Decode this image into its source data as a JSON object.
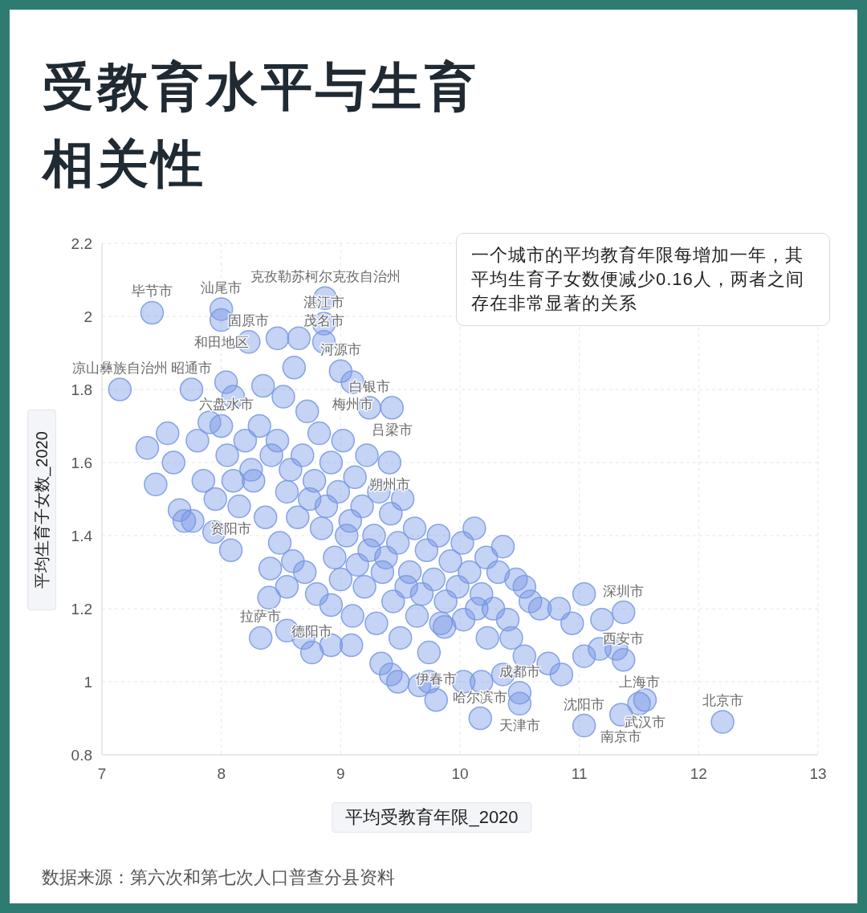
{
  "chart_data": {
    "type": "scatter",
    "title": "受教育水平与生育相关性",
    "xlabel": "平均受教育年限_2020",
    "ylabel": "平均生育子女数_2020",
    "series": [
      {
        "color": "#7596e4",
        "x": [
          7.42,
          8.0,
          8.0,
          8.23,
          8.87,
          8.86,
          8.86,
          7.15,
          7.75,
          8.04,
          9.0,
          9.1,
          9.24,
          9.43,
          9.41,
          8.08,
          8.33,
          8.76,
          9.8,
          10.17,
          10.5,
          10.5,
          11.04,
          11.35,
          11.5,
          11.55,
          12.2,
          11.37,
          11.37,
          8.35,
          8.47,
          8.65,
          7.38,
          7.9,
          7.45,
          7.76,
          7.69,
          7.65,
          7.94,
          8.4,
          8.55,
          8.69,
          8.92,
          8.92,
          8.41,
          8.55,
          9.09,
          9.34,
          9.42,
          9.48,
          9.66,
          9.74,
          10.03,
          10.18,
          10.36,
          10.54,
          10.74,
          10.85,
          10.36,
          10.54,
          10.59,
          10.67,
          10.83,
          10.94,
          11.04,
          11.17,
          10.4,
          10.23,
          10.03,
          9.87,
          11.31,
          11.19,
          11.04,
          7.6,
          7.8,
          8.0,
          8.05,
          8.1,
          8.15,
          7.55,
          8.2,
          8.25,
          7.85,
          7.95,
          8.1,
          8.32,
          8.27,
          8.42,
          8.37,
          8.52,
          8.47,
          8.55,
          8.49,
          8.61,
          8.58,
          8.64,
          8.6,
          8.72,
          8.68,
          8.74,
          8.7,
          8.82,
          8.78,
          8.84,
          8.8,
          8.92,
          8.88,
          8.95,
          9.02,
          8.98,
          9.05,
          9.0,
          9.12,
          9.08,
          9.14,
          9.1,
          9.22,
          9.18,
          9.24,
          9.2,
          9.32,
          9.28,
          9.35,
          9.3,
          9.42,
          9.38,
          9.44,
          9.52,
          9.48,
          9.55,
          9.5,
          9.62,
          9.58,
          9.64,
          9.72,
          9.68,
          9.74,
          9.82,
          9.78,
          9.84,
          9.92,
          9.88,
          10.02,
          9.98,
          10.12,
          10.08,
          10.14,
          10.22,
          10.18,
          10.32,
          10.28,
          10.47,
          10.43
        ],
        "values": [
          2.01,
          2.02,
          1.99,
          1.93,
          2.05,
          1.98,
          1.93,
          1.8,
          1.8,
          1.82,
          1.85,
          1.82,
          1.75,
          1.75,
          1.6,
          1.36,
          1.12,
          1.08,
          0.95,
          0.9,
          0.97,
          0.94,
          0.88,
          0.91,
          0.94,
          0.95,
          0.89,
          1.19,
          1.06,
          1.81,
          1.94,
          1.94,
          1.64,
          1.71,
          1.54,
          1.44,
          1.44,
          1.47,
          1.41,
          1.23,
          1.14,
          1.12,
          1.1,
          1.21,
          1.31,
          1.26,
          1.1,
          1.05,
          1.02,
          1.0,
          0.99,
          1.0,
          1.0,
          1.0,
          1.02,
          1.07,
          1.05,
          1.02,
          1.37,
          1.26,
          1.22,
          1.2,
          1.2,
          1.16,
          1.07,
          1.09,
          1.17,
          1.12,
          1.17,
          1.15,
          1.09,
          1.17,
          1.24,
          1.6,
          1.66,
          1.7,
          1.62,
          1.55,
          1.48,
          1.68,
          1.66,
          1.58,
          1.55,
          1.5,
          1.78,
          1.7,
          1.55,
          1.62,
          1.45,
          1.78,
          1.66,
          1.52,
          1.38,
          1.86,
          1.58,
          1.45,
          1.33,
          1.74,
          1.62,
          1.5,
          1.3,
          1.68,
          1.55,
          1.42,
          1.24,
          1.6,
          1.48,
          1.34,
          1.66,
          1.52,
          1.4,
          1.28,
          1.56,
          1.44,
          1.32,
          1.18,
          1.62,
          1.48,
          1.36,
          1.26,
          1.52,
          1.4,
          1.3,
          1.16,
          1.46,
          1.34,
          1.22,
          1.5,
          1.38,
          1.26,
          1.12,
          1.42,
          1.3,
          1.18,
          1.36,
          1.24,
          1.08,
          1.4,
          1.28,
          1.16,
          1.33,
          1.22,
          1.38,
          1.26,
          1.42,
          1.3,
          1.2,
          1.34,
          1.24,
          1.3,
          1.2,
          1.28,
          1.12
        ]
      }
    ],
    "marker": "circle",
    "xlim": [
      7,
      13
    ],
    "ylim": [
      0.8,
      2.2
    ],
    "xticks": [
      7,
      8,
      9,
      10,
      11,
      12,
      13
    ],
    "yticks": [
      0.8,
      1,
      1.2,
      1.4,
      1.6,
      1.8,
      2,
      2.2
    ],
    "grid": true,
    "annotations": [
      "一个城市的平均教育年限每增加一年，其平均生育子女数便减少0.16人，两者之间存在非常显著的关系",
      "数据来源：第六次和第七次人口普查分县资料",
      {
        "text": "毕节市",
        "x": 7.42,
        "y": 2.01
      },
      {
        "text": "汕尾市",
        "x": 8.0,
        "y": 2.02
      },
      {
        "text": "和田地区",
        "x": 8.0,
        "y": 1.99
      },
      {
        "text": "固原市",
        "x": 8.23,
        "y": 1.93
      },
      {
        "text": "克孜勒苏柯尔克孜自治州",
        "x": 8.87,
        "y": 2.05
      },
      {
        "text": "湛江市",
        "x": 8.86,
        "y": 1.98
      },
      {
        "text": "茂名市",
        "x": 8.86,
        "y": 1.93
      },
      {
        "text": "凉山彝族自治州",
        "x": 7.15,
        "y": 1.8
      },
      {
        "text": "昭通市",
        "x": 7.75,
        "y": 1.8
      },
      {
        "text": "六盘水市",
        "x": 8.04,
        "y": 1.82
      },
      {
        "text": "河源市",
        "x": 9.0,
        "y": 1.85
      },
      {
        "text": "梅州市",
        "x": 9.1,
        "y": 1.82
      },
      {
        "text": "白银市",
        "x": 9.24,
        "y": 1.75
      },
      {
        "text": "吕梁市",
        "x": 9.43,
        "y": 1.75
      },
      {
        "text": "朔州市",
        "x": 9.41,
        "y": 1.6
      },
      {
        "text": "资阳市",
        "x": 8.08,
        "y": 1.36
      },
      {
        "text": "拉萨市",
        "x": 8.33,
        "y": 1.12
      },
      {
        "text": "德阳市",
        "x": 8.76,
        "y": 1.08
      },
      {
        "text": "伊春市",
        "x": 9.8,
        "y": 0.95
      },
      {
        "text": "哈尔滨市",
        "x": 10.17,
        "y": 0.9
      },
      {
        "text": "成都市",
        "x": 10.5,
        "y": 0.97
      },
      {
        "text": "天津市",
        "x": 10.5,
        "y": 0.94
      },
      {
        "text": "沈阳市",
        "x": 11.04,
        "y": 0.88
      },
      {
        "text": "南京市",
        "x": 11.35,
        "y": 0.91
      },
      {
        "text": "上海市",
        "x": 11.5,
        "y": 0.94
      },
      {
        "text": "武汉市",
        "x": 11.55,
        "y": 0.95
      },
      {
        "text": "北京市",
        "x": 12.2,
        "y": 0.89
      },
      {
        "text": "深圳市",
        "x": 11.37,
        "y": 1.19
      },
      {
        "text": "西安市",
        "x": 11.37,
        "y": 1.06
      }
    ]
  }
}
